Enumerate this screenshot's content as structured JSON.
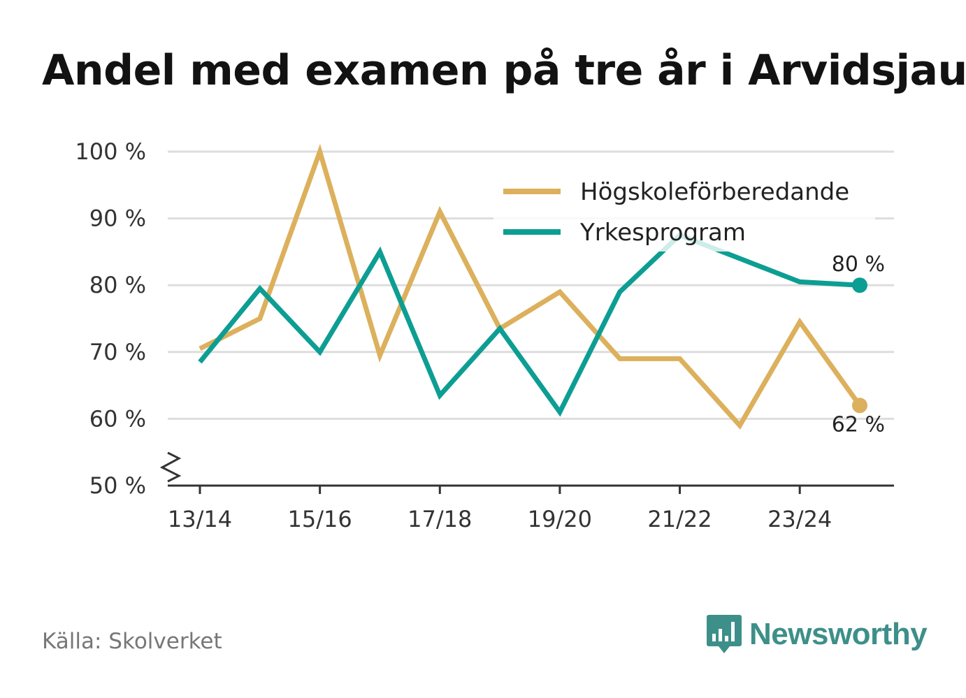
{
  "title": "Andel med examen på tre år i Arvidsjaur",
  "source": "Källa: Skolverket",
  "brand": {
    "name": "Newsworthy",
    "logo_icon": "newsworthy-logo-icon",
    "color": "#3d8f89"
  },
  "chart_data": {
    "type": "line",
    "title": "Andel med examen på tre år i Arvidsjaur",
    "xlabel": "",
    "ylabel": "",
    "ylim": [
      50,
      100
    ],
    "yticks": [
      50,
      60,
      70,
      80,
      90,
      100
    ],
    "ytick_labels": [
      "50 %",
      "60 %",
      "70 %",
      "80 %",
      "90 %",
      "100 %"
    ],
    "y_axis_break": true,
    "grid": true,
    "legend_position": "top-right",
    "categories": [
      "13/14",
      "14/15",
      "15/16",
      "16/17",
      "17/18",
      "18/19",
      "19/20",
      "20/21",
      "21/22",
      "22/23",
      "23/24",
      "24/25"
    ],
    "xtick_labels": [
      "13/14",
      "",
      "15/16",
      "",
      "17/18",
      "",
      "19/20",
      "",
      "21/22",
      "",
      "23/24",
      ""
    ],
    "series": [
      {
        "name": "Högskoleförberedande",
        "color": "#dcb05c",
        "values": [
          70.5,
          75,
          100,
          69.5,
          91,
          73.5,
          79,
          69,
          69,
          59,
          74.5,
          62
        ],
        "end_label": "62 %"
      },
      {
        "name": "Yrkesprogram",
        "color": "#0d9e93",
        "values": [
          68.5,
          79.5,
          70,
          85,
          63.5,
          73.5,
          61,
          79,
          87.5,
          84,
          80.5,
          80
        ],
        "end_label": "80 %"
      }
    ]
  }
}
